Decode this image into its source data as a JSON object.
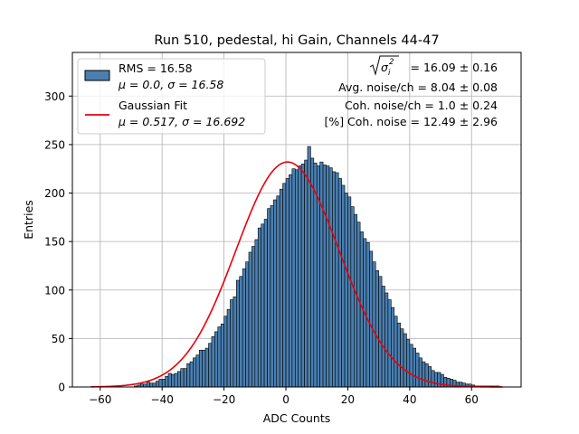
{
  "chart_data": {
    "type": "bar",
    "title": "Run 510, pedestal, hi Gain, Channels 44-47",
    "xlabel": "ADC Counts",
    "ylabel": "Entries",
    "xlim": [
      -69,
      76
    ],
    "ylim": [
      0,
      345
    ],
    "xticks": [
      -60,
      -40,
      -20,
      0,
      20,
      40,
      60
    ],
    "xtick_labels": [
      "−60",
      "−40",
      "−20",
      "0",
      "20",
      "40",
      "60"
    ],
    "yticks": [
      0,
      50,
      100,
      150,
      200,
      250,
      300
    ],
    "grid": true,
    "legend_position": "top-left",
    "histogram": {
      "name": "RMS = 16.58",
      "name_line2": "μ = 0.0, σ = 16.58",
      "color": "#4a7fb0",
      "edge_color": "#000000",
      "bin_width": 1,
      "bin_start": -63,
      "counts": [
        0,
        0,
        0,
        0,
        0,
        0,
        0,
        0,
        0,
        0,
        0,
        0,
        0,
        0,
        1,
        2,
        3,
        3,
        5,
        4,
        4,
        6,
        8,
        8,
        11,
        14,
        13,
        14,
        16,
        19,
        19,
        24,
        26,
        30,
        33,
        38,
        38,
        40,
        45,
        52,
        57,
        62,
        65,
        73,
        80,
        90,
        93,
        110,
        114,
        122,
        129,
        139,
        145,
        152,
        164,
        168,
        173,
        184,
        187,
        193,
        197,
        204,
        210,
        215,
        219,
        225,
        224,
        228,
        230,
        234,
        248,
        236,
        231,
        228,
        232,
        229,
        228,
        226,
        222,
        221,
        215,
        208,
        200,
        196,
        186,
        178,
        170,
        160,
        153,
        149,
        140,
        129,
        120,
        114,
        104,
        97,
        90,
        82,
        73,
        66,
        60,
        55,
        49,
        44,
        40,
        35,
        30,
        26,
        24,
        21,
        17,
        15,
        15,
        13,
        10,
        9,
        8,
        7,
        5,
        5,
        4,
        3,
        3,
        2,
        1,
        1,
        1,
        1,
        1,
        1,
        1,
        1,
        0,
        0
      ]
    },
    "fit": {
      "name": "Gaussian Fit",
      "name_line2": "μ = 0.517, σ = 16.692",
      "color": "#e8000b",
      "mu": 0.517,
      "sigma": 16.692,
      "amplitude": 232,
      "x_range": [
        -63,
        70
      ]
    },
    "annotations": {
      "line1_value": "= 16.09 ± 0.16",
      "line1_symbol": "σ",
      "line1_sub": "i",
      "line1_sup": "2",
      "line2": "Avg. noise/ch = 8.04 ± 0.08",
      "line3": "Coh. noise/ch = 1.0 ± 0.24",
      "line4": "[%] Coh. noise = 12.49 ± 2.96"
    },
    "colors": {
      "grid": "#b0b0b0",
      "axes": "#000000"
    }
  }
}
